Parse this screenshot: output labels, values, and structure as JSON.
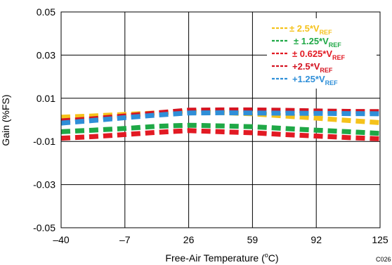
{
  "chart_data": {
    "type": "line",
    "title": "",
    "xlabel": "Free-Air Temperature (",
    "xlabel_sup": "o",
    "xlabel_tail": "C)",
    "ylabel": "Gain (%FS)",
    "x_ticks": [
      -40,
      -7,
      26,
      59,
      92,
      125
    ],
    "x_tick_labels": [
      "–40",
      "–7",
      "26",
      "59",
      "92",
      "125"
    ],
    "y_ticks": [
      -0.05,
      -0.03,
      -0.01,
      0.01,
      0.03,
      0.05
    ],
    "y_tick_labels": [
      "-0.05",
      "-0.03",
      "-0.01",
      "0.01",
      "0.03",
      "0.05"
    ],
    "xlim": [
      -40,
      125
    ],
    "ylim": [
      -0.05,
      0.05
    ],
    "grid": true,
    "legend_position": "top-right",
    "code_label": "C026",
    "x": [
      -40,
      -23.5,
      -7,
      9.5,
      26,
      42.5,
      59,
      75.5,
      92,
      108.5,
      125
    ],
    "series": [
      {
        "legend_prefix": "± 2.5*V",
        "legend_sub": "REF",
        "color": "#f5c21b",
        "values": [
          0.0012,
          0.0018,
          0.0025,
          0.0032,
          0.0038,
          0.0034,
          0.0028,
          0.0018,
          0.0008,
          -0.0003,
          -0.0013
        ]
      },
      {
        "legend_prefix": "± 1.25*V",
        "legend_sub": "REF",
        "color": "#1fa846",
        "values": [
          -0.0055,
          -0.0048,
          -0.004,
          -0.003,
          -0.0025,
          -0.0028,
          -0.0032,
          -0.004,
          -0.0048,
          -0.0055,
          -0.0063
        ]
      },
      {
        "legend_prefix": "± 0.625*V",
        "legend_sub": "REF",
        "color": "#e21a23",
        "values": [
          -0.0085,
          -0.0078,
          -0.0068,
          -0.0058,
          -0.005,
          -0.0055,
          -0.006,
          -0.0068,
          -0.0075,
          -0.0082,
          -0.0088
        ]
      },
      {
        "legend_prefix": "+2.5*V",
        "legend_sub": "REF",
        "color": "#d41422",
        "values": [
          -0.0005,
          0.0005,
          0.0018,
          0.0032,
          0.0045,
          0.0046,
          0.0046,
          0.0044,
          0.0041,
          0.0039,
          0.0038
        ]
      },
      {
        "legend_prefix": "+1.25*V",
        "legend_sub": "REF",
        "color": "#2f8fd8",
        "values": [
          -0.0015,
          -0.0003,
          0.001,
          0.0022,
          0.0032,
          0.0033,
          0.0032,
          0.0031,
          0.003,
          0.0029,
          0.0028
        ]
      }
    ]
  }
}
